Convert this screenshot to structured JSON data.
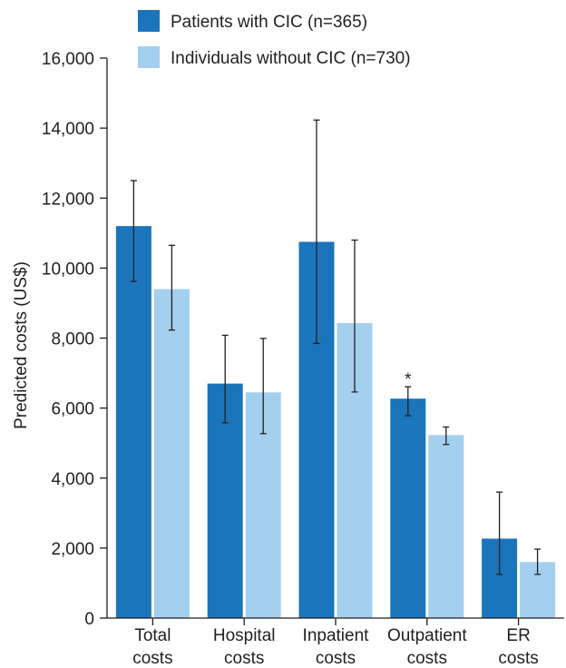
{
  "chart_data": {
    "type": "bar",
    "title": "",
    "ylabel": "Predicted costs (US$)",
    "xlabel": "",
    "ylim": [
      0,
      16000
    ],
    "yticks": [
      "0",
      "2,000",
      "4,000",
      "6,000",
      "8,000",
      "10,000",
      "12,000",
      "14,000",
      "16,000"
    ],
    "ytick_values": [
      0,
      2000,
      4000,
      6000,
      8000,
      10000,
      12000,
      14000,
      16000
    ],
    "categories": [
      {
        "line1": "Total",
        "line2": "costs"
      },
      {
        "line1": "Hospital",
        "line2": "costs"
      },
      {
        "line1": "Inpatient",
        "line2": "costs"
      },
      {
        "line1": "Outpatient",
        "line2": "costs"
      },
      {
        "line1": "ER",
        "line2": "costs"
      }
    ],
    "series": [
      {
        "name": "Patients with CIC (n=365)",
        "color": "#1b75bb",
        "values": [
          11200,
          6700,
          10750,
          6270,
          2270
        ],
        "err_low": [
          9620,
          5580,
          7850,
          5780,
          1250
        ],
        "err_high": [
          12500,
          8080,
          14230,
          6610,
          3600
        ]
      },
      {
        "name": "Individuals without CIC (n=730)",
        "color": "#a3d0ef",
        "values": [
          9400,
          6450,
          8430,
          5230,
          1600
        ],
        "err_low": [
          8230,
          5270,
          6460,
          4960,
          1250
        ],
        "err_high": [
          10650,
          7990,
          10800,
          5460,
          1970
        ]
      }
    ],
    "legend_position": "top",
    "grid": false,
    "annotations": [
      {
        "category_index": 3,
        "series_index": 0,
        "text": "*"
      }
    ]
  }
}
